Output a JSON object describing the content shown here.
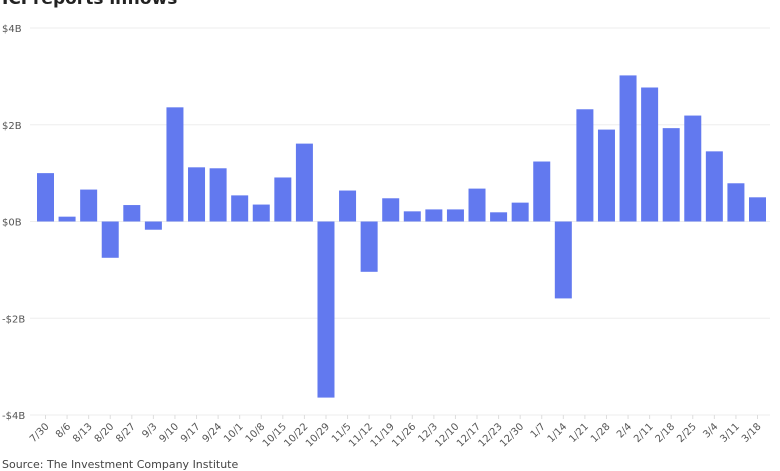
{
  "chart_data": {
    "type": "bar",
    "title": "ICI reports inflows",
    "source": "Source: The Investment Company Institute",
    "ylim": [
      -4,
      4
    ],
    "yticks": [
      {
        "v": 4,
        "label": "$4B"
      },
      {
        "v": 2,
        "label": "$2B"
      },
      {
        "v": 0,
        "label": "$0B"
      },
      {
        "v": -2,
        "label": "-$2B"
      },
      {
        "v": -4,
        "label": "-$4B"
      }
    ],
    "grid": true,
    "bar_color": "#6279ef",
    "categories": [
      "7/30",
      "8/6",
      "8/13",
      "8/20",
      "8/27",
      "9/3",
      "9/10",
      "9/17",
      "9/24",
      "10/1",
      "10/8",
      "10/15",
      "10/22",
      "10/29",
      "11/5",
      "11/12",
      "11/19",
      "11/26",
      "12/3",
      "12/10",
      "12/17",
      "12/23",
      "12/30",
      "1/7",
      "1/14",
      "1/21",
      "1/28",
      "2/4",
      "2/11",
      "2/18",
      "2/25",
      "3/4",
      "3/11",
      "3/18"
    ],
    "values": [
      1.0,
      0.1,
      0.66,
      -0.75,
      0.34,
      -0.17,
      2.36,
      1.12,
      1.1,
      0.54,
      0.35,
      0.91,
      1.61,
      -3.64,
      0.64,
      -1.04,
      0.48,
      0.21,
      0.25,
      0.25,
      0.68,
      0.19,
      0.39,
      1.24,
      -1.59,
      2.32,
      1.9,
      3.02,
      2.77,
      1.93,
      2.19,
      1.45,
      0.79,
      0.5
    ]
  }
}
